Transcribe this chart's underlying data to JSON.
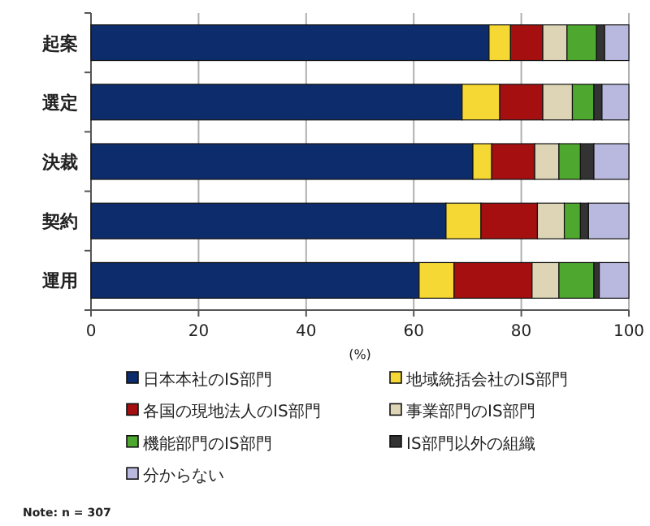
{
  "chart_data": {
    "type": "bar",
    "orientation": "horizontal",
    "stacked": true,
    "categories": [
      "起案",
      "選定",
      "決裁",
      "契約",
      "運用"
    ],
    "series": [
      {
        "name": "日本本社のIS部門",
        "color": "#0d2c6b",
        "values": [
          74,
          69,
          71,
          66,
          61
        ]
      },
      {
        "name": "地域統括会社のIS部門",
        "color": "#f5d833",
        "values": [
          4,
          7,
          3.5,
          6.5,
          6.5
        ]
      },
      {
        "name": "各国の現地法人のIS部門",
        "color": "#a50f0f",
        "values": [
          6,
          8,
          8,
          10.5,
          14.5
        ]
      },
      {
        "name": "事業部門のIS部門",
        "color": "#ddd5b5",
        "values": [
          4.5,
          5.5,
          4.5,
          5,
          5
        ]
      },
      {
        "name": "機能部門のIS部門",
        "color": "#4ea72e",
        "values": [
          5.5,
          4,
          4,
          3,
          6.5
        ]
      },
      {
        "name": "IS部門以外の組織",
        "color": "#333333",
        "values": [
          1.5,
          1.5,
          2.5,
          1.5,
          1
        ]
      },
      {
        "name": "分からない",
        "color": "#b9b9e0",
        "values": [
          4.5,
          5,
          6.5,
          7.5,
          5.5
        ]
      }
    ],
    "xlim": [
      0,
      100
    ],
    "xticks": [
      0,
      20,
      40,
      60,
      80,
      100
    ],
    "xlabel": "(%)",
    "grid": "x",
    "legend": "bottom",
    "annotations": [
      "Note: n = 307"
    ]
  }
}
